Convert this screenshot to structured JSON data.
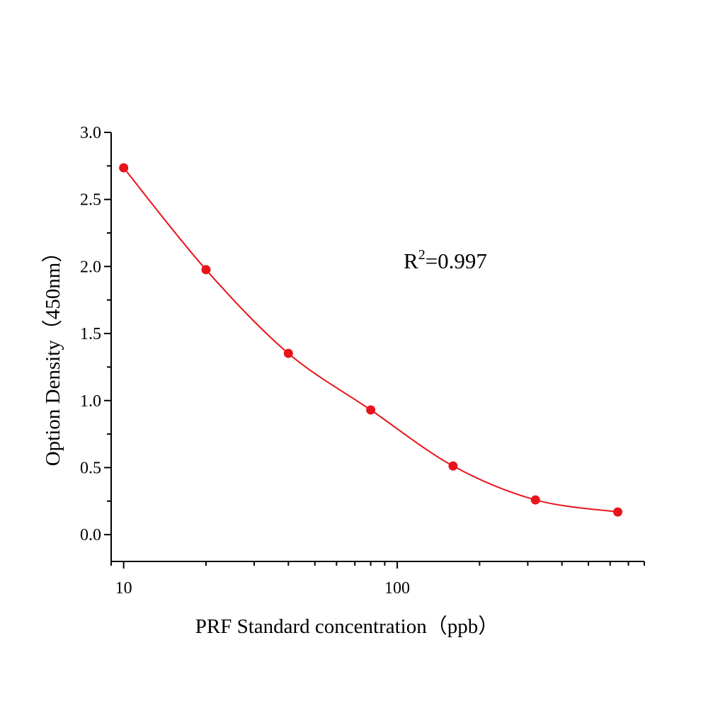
{
  "chart_data": {
    "type": "scatter",
    "xlabel": "PRF Standard concentration（ppb）",
    "ylabel": "Option Density（450nm）",
    "x_scale": "log",
    "xlim": [
      9,
      800
    ],
    "ylim": [
      -0.2,
      3.0
    ],
    "x_ticks": [
      10,
      100
    ],
    "x_tick_labels": [
      "10",
      "100"
    ],
    "y_ticks": [
      0.0,
      0.5,
      1.0,
      1.5,
      2.0,
      2.5,
      3.0
    ],
    "y_tick_labels": [
      "0.0",
      "0.5",
      "1.0",
      "1.5",
      "2.0",
      "2.5",
      "3.0"
    ],
    "grid": false,
    "annotation": {
      "prefix": "R",
      "sup": "2",
      "suffix": "=0.997"
    },
    "series": [
      {
        "x": [
          10,
          20,
          40,
          80,
          160,
          320,
          640
        ],
        "y": [
          2.736,
          1.976,
          1.352,
          0.93,
          0.512,
          0.259,
          0.169
        ],
        "color": "#e8141b",
        "fit_line": true
      }
    ]
  }
}
